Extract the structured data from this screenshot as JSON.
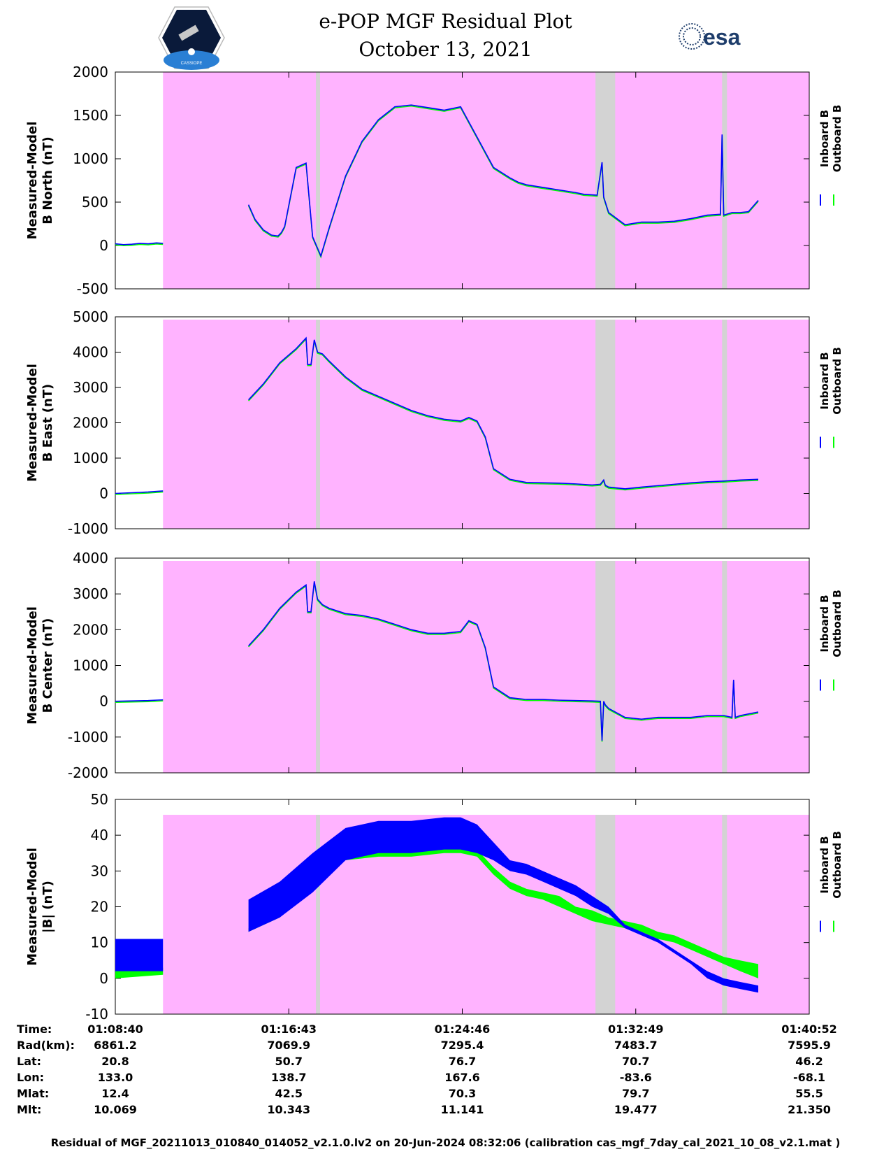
{
  "header": {
    "title_line1": "e-POP MGF Residual Plot",
    "title_line2": "October 13, 2021",
    "left_logo_text": "CASSIOPE",
    "right_logo_text": "esa"
  },
  "colors": {
    "inboard": "#0000ff",
    "outboard": "#00ff00",
    "shade_magenta": "#ffb3ff",
    "shade_gray": "#d3d3d3"
  },
  "chart_data": [
    {
      "type": "line",
      "ylabel_line1": "Measured-Model",
      "ylabel_line2": "B North (nT)",
      "ylim": [
        -500,
        2000
      ],
      "yticks": [
        "2000",
        "1500",
        "1000",
        "500",
        "0",
        "-500"
      ],
      "legend": [
        "Inboard B",
        "Outboard B"
      ],
      "series": [
        {
          "name": "Inboard B",
          "x": [
            0,
            0.5,
            1,
            1.5,
            2,
            2.5,
            3,
            3.4,
            3.6,
            3.8,
            4,
            4.2,
            4.5,
            5,
            6,
            7,
            8,
            9,
            9.5,
            9.8,
            10.2,
            11,
            12,
            13,
            14,
            16,
            17.9,
            18,
            18,
            18.2,
            18.4,
            18.8,
            19,
            20,
            21,
            22,
            23,
            24,
            25,
            26,
            27.2,
            27.3,
            27.3,
            27.6,
            28,
            28.4
          ],
          "y": [
            20,
            10,
            20,
            30,
            15,
            30,
            null,
            null,
            null,
            null,
            null,
            null,
            null,
            null,
            null,
            null,
            null,
            null,
            null,
            null,
            null,
            null,
            null,
            null,
            null,
            null,
            null,
            null,
            null,
            null,
            null,
            null,
            null,
            null,
            null,
            null,
            null,
            null,
            null,
            null,
            null,
            null,
            null,
            null,
            null,
            null
          ]
        },
        {
          "name": "Outboard B",
          "x": [
            0,
            2.9
          ],
          "y": [
            25,
            20
          ]
        }
      ],
      "gaps": [
        [
          2.9,
          8.0
        ]
      ],
      "inboard_x": [
        0,
        0.5,
        1,
        1.5,
        2,
        2.5,
        2.9,
        8.1,
        8.5,
        9,
        9.5,
        9.9,
        10.1,
        10.3,
        11,
        11.6,
        12,
        12.5,
        13,
        14,
        15,
        16,
        17,
        18,
        19,
        20,
        21,
        22,
        23,
        24,
        24.5,
        25,
        26,
        27,
        28,
        28.5,
        29.3,
        29.6,
        29.7,
        30,
        31,
        32,
        33,
        34,
        35,
        35.5,
        36,
        36.8,
        36.9,
        37,
        37.5,
        38,
        38.5,
        39.1
      ],
      "inboard_y": [
        20,
        10,
        15,
        25,
        20,
        30,
        25,
        470,
        300,
        180,
        120,
        110,
        150,
        220,
        900,
        950,
        100,
        -120,
        200,
        800,
        1200,
        1450,
        1600,
        1620,
        1590,
        1560,
        1600,
        1250,
        900,
        780,
        730,
        700,
        670,
        640,
        610,
        590,
        580,
        960,
        560,
        380,
        240,
        270,
        270,
        280,
        310,
        330,
        350,
        360,
        1280,
        350,
        380,
        380,
        390,
        520
      ]
    },
    {
      "type": "line",
      "ylabel_line1": "Measured-Model",
      "ylabel_line2": "B East (nT)",
      "ylim": [
        -1000,
        5000
      ],
      "yticks": [
        "5000",
        "4000",
        "3000",
        "2000",
        "1000",
        "0",
        "-1000"
      ],
      "legend": [
        "Inboard B",
        "Outboard B"
      ],
      "inboard_x": [
        0,
        1,
        2,
        2.9,
        8.1,
        9,
        10,
        11,
        11.6,
        11.7,
        11.9,
        12.1,
        12.3,
        12.6,
        13,
        14,
        15,
        16,
        17,
        18,
        19,
        20,
        21,
        21.5,
        22,
        22.5,
        23,
        24,
        25,
        26,
        27,
        28,
        29,
        29.5,
        29.7,
        29.8,
        30,
        31,
        32,
        33,
        34,
        35,
        36,
        37,
        38,
        39.1
      ],
      "inboard_y": [
        0,
        20,
        40,
        70,
        2650,
        3100,
        3700,
        4100,
        4400,
        3650,
        3650,
        4350,
        4000,
        3950,
        3750,
        3300,
        2950,
        2750,
        2550,
        2350,
        2200,
        2100,
        2050,
        2150,
        2050,
        1600,
        700,
        400,
        310,
        300,
        290,
        270,
        240,
        260,
        380,
        230,
        180,
        130,
        180,
        220,
        260,
        300,
        330,
        350,
        380,
        400
      ]
    },
    {
      "type": "line",
      "ylabel_line1": "Measured-Model",
      "ylabel_line2": "B Center (nT)",
      "ylim": [
        -2000,
        4000
      ],
      "yticks": [
        "4000",
        "3000",
        "2000",
        "1000",
        "0",
        "-1000",
        "-2000"
      ],
      "legend": [
        "Inboard B",
        "Outboard B"
      ],
      "inboard_x": [
        0,
        1,
        2,
        2.9,
        8.1,
        9,
        10,
        11,
        11.6,
        11.7,
        11.9,
        12.1,
        12.3,
        12.6,
        13,
        14,
        15,
        16,
        17,
        18,
        19,
        20,
        21,
        21.5,
        22,
        22.5,
        23,
        24,
        25,
        26,
        27,
        28,
        29,
        29.5,
        29.6,
        29.7,
        29.8,
        30,
        31,
        32,
        33,
        34,
        35,
        36,
        37,
        37.5,
        37.6,
        37.7,
        38,
        39.1
      ],
      "inboard_y": [
        0,
        10,
        20,
        40,
        1550,
        2000,
        2600,
        3050,
        3250,
        2500,
        2500,
        3350,
        2850,
        2700,
        2600,
        2450,
        2400,
        2300,
        2150,
        2000,
        1900,
        1900,
        1950,
        2250,
        2150,
        1500,
        400,
        100,
        50,
        50,
        30,
        20,
        10,
        0,
        -1100,
        0,
        -100,
        -200,
        -450,
        -500,
        -450,
        -450,
        -450,
        -400,
        -400,
        -450,
        600,
        -450,
        -400,
        -300
      ]
    },
    {
      "type": "line",
      "ylabel_line1": "Measured-Model",
      "ylabel_line2": "|B| (nT)",
      "ylim": [
        -10,
        50
      ],
      "yticks": [
        "50",
        "40",
        "30",
        "20",
        "10",
        "0",
        "-10"
      ],
      "legend": [
        "Inboard B",
        "Outboard B"
      ],
      "inboard_band": {
        "x": [
          0,
          2.9,
          8.1,
          10,
          12,
          14,
          16,
          18,
          20,
          21,
          22,
          23,
          24,
          25,
          26,
          27,
          28,
          29,
          30,
          31,
          32,
          33,
          34,
          35,
          36,
          37,
          38,
          39.1
        ],
        "hi": [
          11,
          11,
          22,
          27,
          35,
          42,
          44,
          44,
          45,
          45,
          43,
          38,
          33,
          32,
          30,
          28,
          26,
          23,
          20,
          15,
          13,
          11,
          8,
          5,
          2,
          0,
          -1,
          -2
        ],
        "lo": [
          2,
          2,
          13,
          17,
          24,
          33,
          35,
          35,
          36,
          36,
          35,
          33,
          30,
          29,
          27,
          25,
          23,
          20,
          18,
          14,
          12,
          10,
          7,
          4,
          0,
          -2,
          -3,
          -4
        ]
      },
      "outboard_band": {
        "x": [
          0,
          2.9,
          8.1,
          10,
          12,
          14,
          16,
          18,
          20,
          21,
          22,
          23,
          24,
          25,
          26,
          27,
          28,
          29,
          30,
          31,
          32,
          33,
          34,
          35,
          36,
          37,
          38,
          39.1
        ],
        "hi": [
          3,
          3,
          14,
          19,
          27,
          35,
          36,
          36,
          37,
          37,
          36,
          31,
          27,
          25,
          24,
          23,
          20,
          19,
          17,
          16,
          15,
          13,
          12,
          10,
          8,
          6,
          5,
          4
        ],
        "lo": [
          0,
          1,
          13,
          17,
          25,
          33,
          34,
          34,
          35,
          35,
          34,
          29,
          25,
          23,
          22,
          20,
          18,
          16,
          15,
          14,
          13,
          11,
          10,
          8,
          6,
          4,
          2,
          0
        ]
      }
    }
  ],
  "time_axis": {
    "domain_minutes": [
      0,
      42.2
    ],
    "tick_minutes": [
      0,
      10.55,
      21.1,
      31.65,
      42.2
    ],
    "magenta_span": [
      2.9,
      42.2
    ],
    "gray_spans": [
      [
        12.2,
        12.45
      ],
      [
        29.2,
        30.4
      ],
      [
        36.9,
        37.2
      ]
    ]
  },
  "ephemeris": {
    "labels": [
      "Time:",
      "Rad(km):",
      "Lat:",
      "Lon:",
      "Mlat:",
      "Mlt:"
    ],
    "columns": [
      [
        "01:08:40",
        "6861.2",
        "20.8",
        "133.0",
        "12.4",
        "10.069"
      ],
      [
        "01:16:43",
        "7069.9",
        "50.7",
        "138.7",
        "42.5",
        "10.343"
      ],
      [
        "01:24:46",
        "7295.4",
        "76.7",
        "167.6",
        "70.3",
        "11.141"
      ],
      [
        "01:32:49",
        "7483.7",
        "70.7",
        "-83.6",
        "79.7",
        "19.477"
      ],
      [
        "01:40:52",
        "7595.9",
        "46.2",
        "-68.1",
        "55.5",
        "21.350"
      ]
    ]
  },
  "footer": "Residual of MGF_20211013_010840_014052_v2.1.0.lv2 on 20-Jun-2024 08:32:06 (calibration cas_mgf_7day_cal_2021_10_08_v2.1.mat )"
}
